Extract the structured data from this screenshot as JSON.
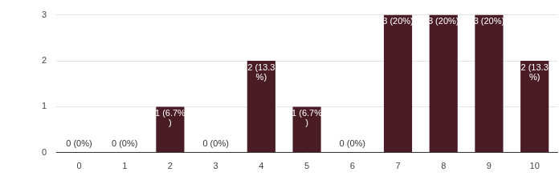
{
  "chart_data": {
    "type": "bar",
    "categories": [
      "0",
      "1",
      "2",
      "3",
      "4",
      "5",
      "6",
      "7",
      "8",
      "9",
      "10"
    ],
    "values": [
      0,
      0,
      1,
      0,
      2,
      1,
      0,
      3,
      3,
      3,
      2
    ],
    "value_labels": [
      "0 (0%)",
      "0 (0%)",
      "1 (6.7%)",
      "0 (0%)",
      "2 (13.3%)",
      "1 (6.7%)",
      "0 (0%)",
      "3 (20%)",
      "3 (20%)",
      "3 (20%)",
      "2 (13.3%)"
    ],
    "data_labels": true,
    "color": "#4a1d26",
    "ylim": [
      0,
      3
    ],
    "yticks": [
      0,
      1,
      2,
      3
    ],
    "grid": true
  }
}
